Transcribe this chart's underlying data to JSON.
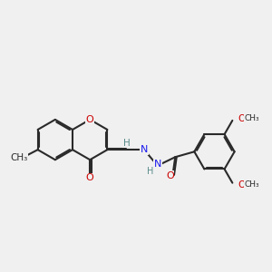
{
  "bg_color": "#f0f0f0",
  "bond_color": "#2a2a2a",
  "O_color": "#cc0000",
  "N_color": "#1a1aee",
  "H_color": "#5a8a8a",
  "line_width": 1.5,
  "font_size": 8.0,
  "figsize": [
    3.0,
    3.0
  ],
  "dpi": 100,
  "xlim": [
    0.0,
    11.0
  ],
  "ylim": [
    2.5,
    8.0
  ]
}
